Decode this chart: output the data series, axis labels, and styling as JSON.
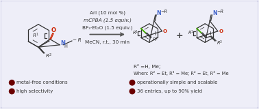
{
  "background_color": "#eeeef8",
  "border_color": "#9090c0",
  "reagents_line1": "ArI (10 mol %)",
  "reagents_line2": "mCPBA (1.5 equiv.)",
  "reagents_line3": "BF₃·Et₂O (1.5 equiv.)",
  "reagents_line4": "MeCN, r.t., 30 min",
  "r2_note_line1": "R² =H, Me;",
  "r2_note_line2": "When: R² = Et, R³ = Me; R² = Et, R³ = Me",
  "bullet_color": "#6b0000",
  "bullet_items_left": [
    "metal-free conditions",
    "high selectivity"
  ],
  "bullet_items_right": [
    "operationally simple and scalable",
    "36 entries, up to 90% yield"
  ],
  "text_color": "#333333",
  "reagent_color": "#333333",
  "blue_n_color": "#4466cc",
  "red_o_color": "#cc2200",
  "green_bond_color": "#44aa00",
  "arrow_color": "#555555"
}
